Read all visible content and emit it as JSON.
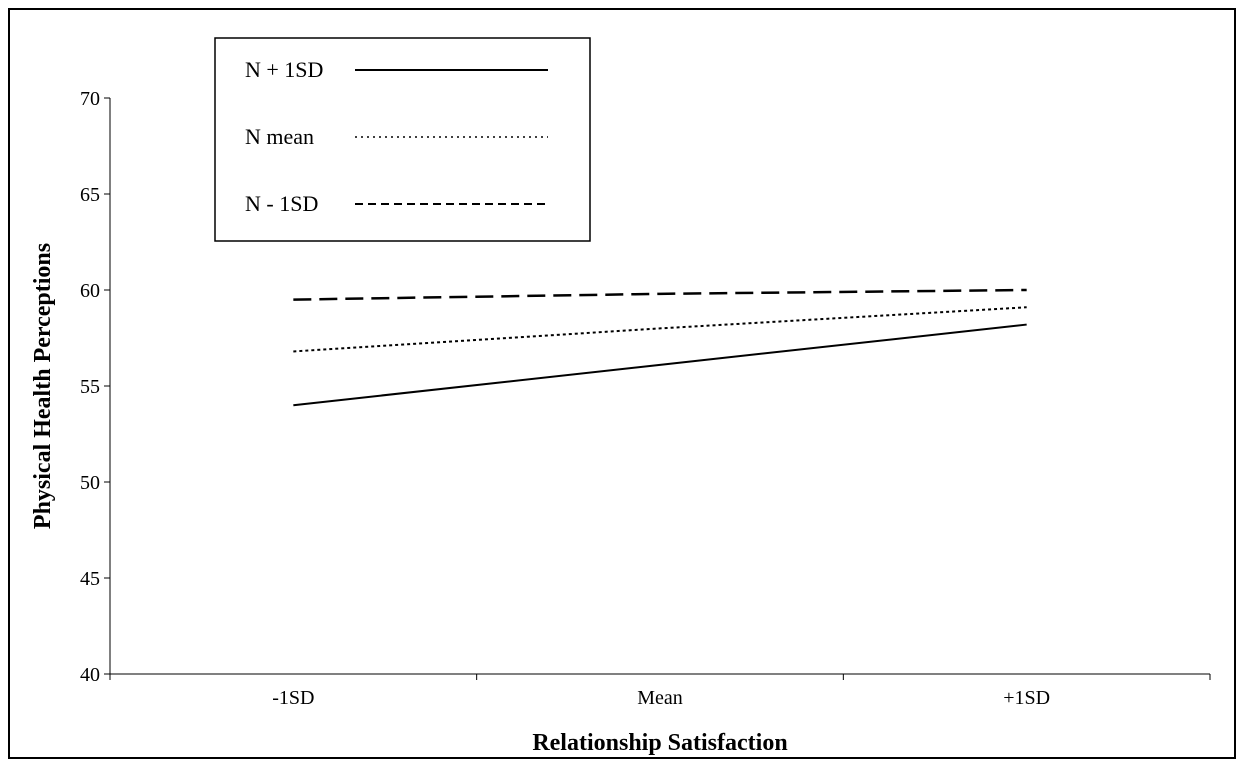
{
  "chart_data": {
    "type": "line",
    "categories": [
      "-1SD",
      "Mean",
      "+1SD"
    ],
    "xlabel": "Relationship Satisfaction",
    "ylabel": "Physical Health Perceptions",
    "ylim": [
      40,
      70
    ],
    "yticks": [
      40,
      45,
      50,
      55,
      60,
      65,
      70
    ],
    "grid": false,
    "legend_position": "top-left",
    "series": [
      {
        "name": "N + 1SD",
        "values": [
          54.0,
          56.1,
          58.2
        ],
        "style": "solid"
      },
      {
        "name": "N mean",
        "values": [
          56.8,
          58.0,
          59.1
        ],
        "style": "dotted"
      },
      {
        "name": "N - 1SD",
        "values": [
          59.5,
          59.8,
          60.0
        ],
        "style": "dashed"
      }
    ]
  },
  "colors": {
    "line": "#000000",
    "background": "#ffffff"
  }
}
